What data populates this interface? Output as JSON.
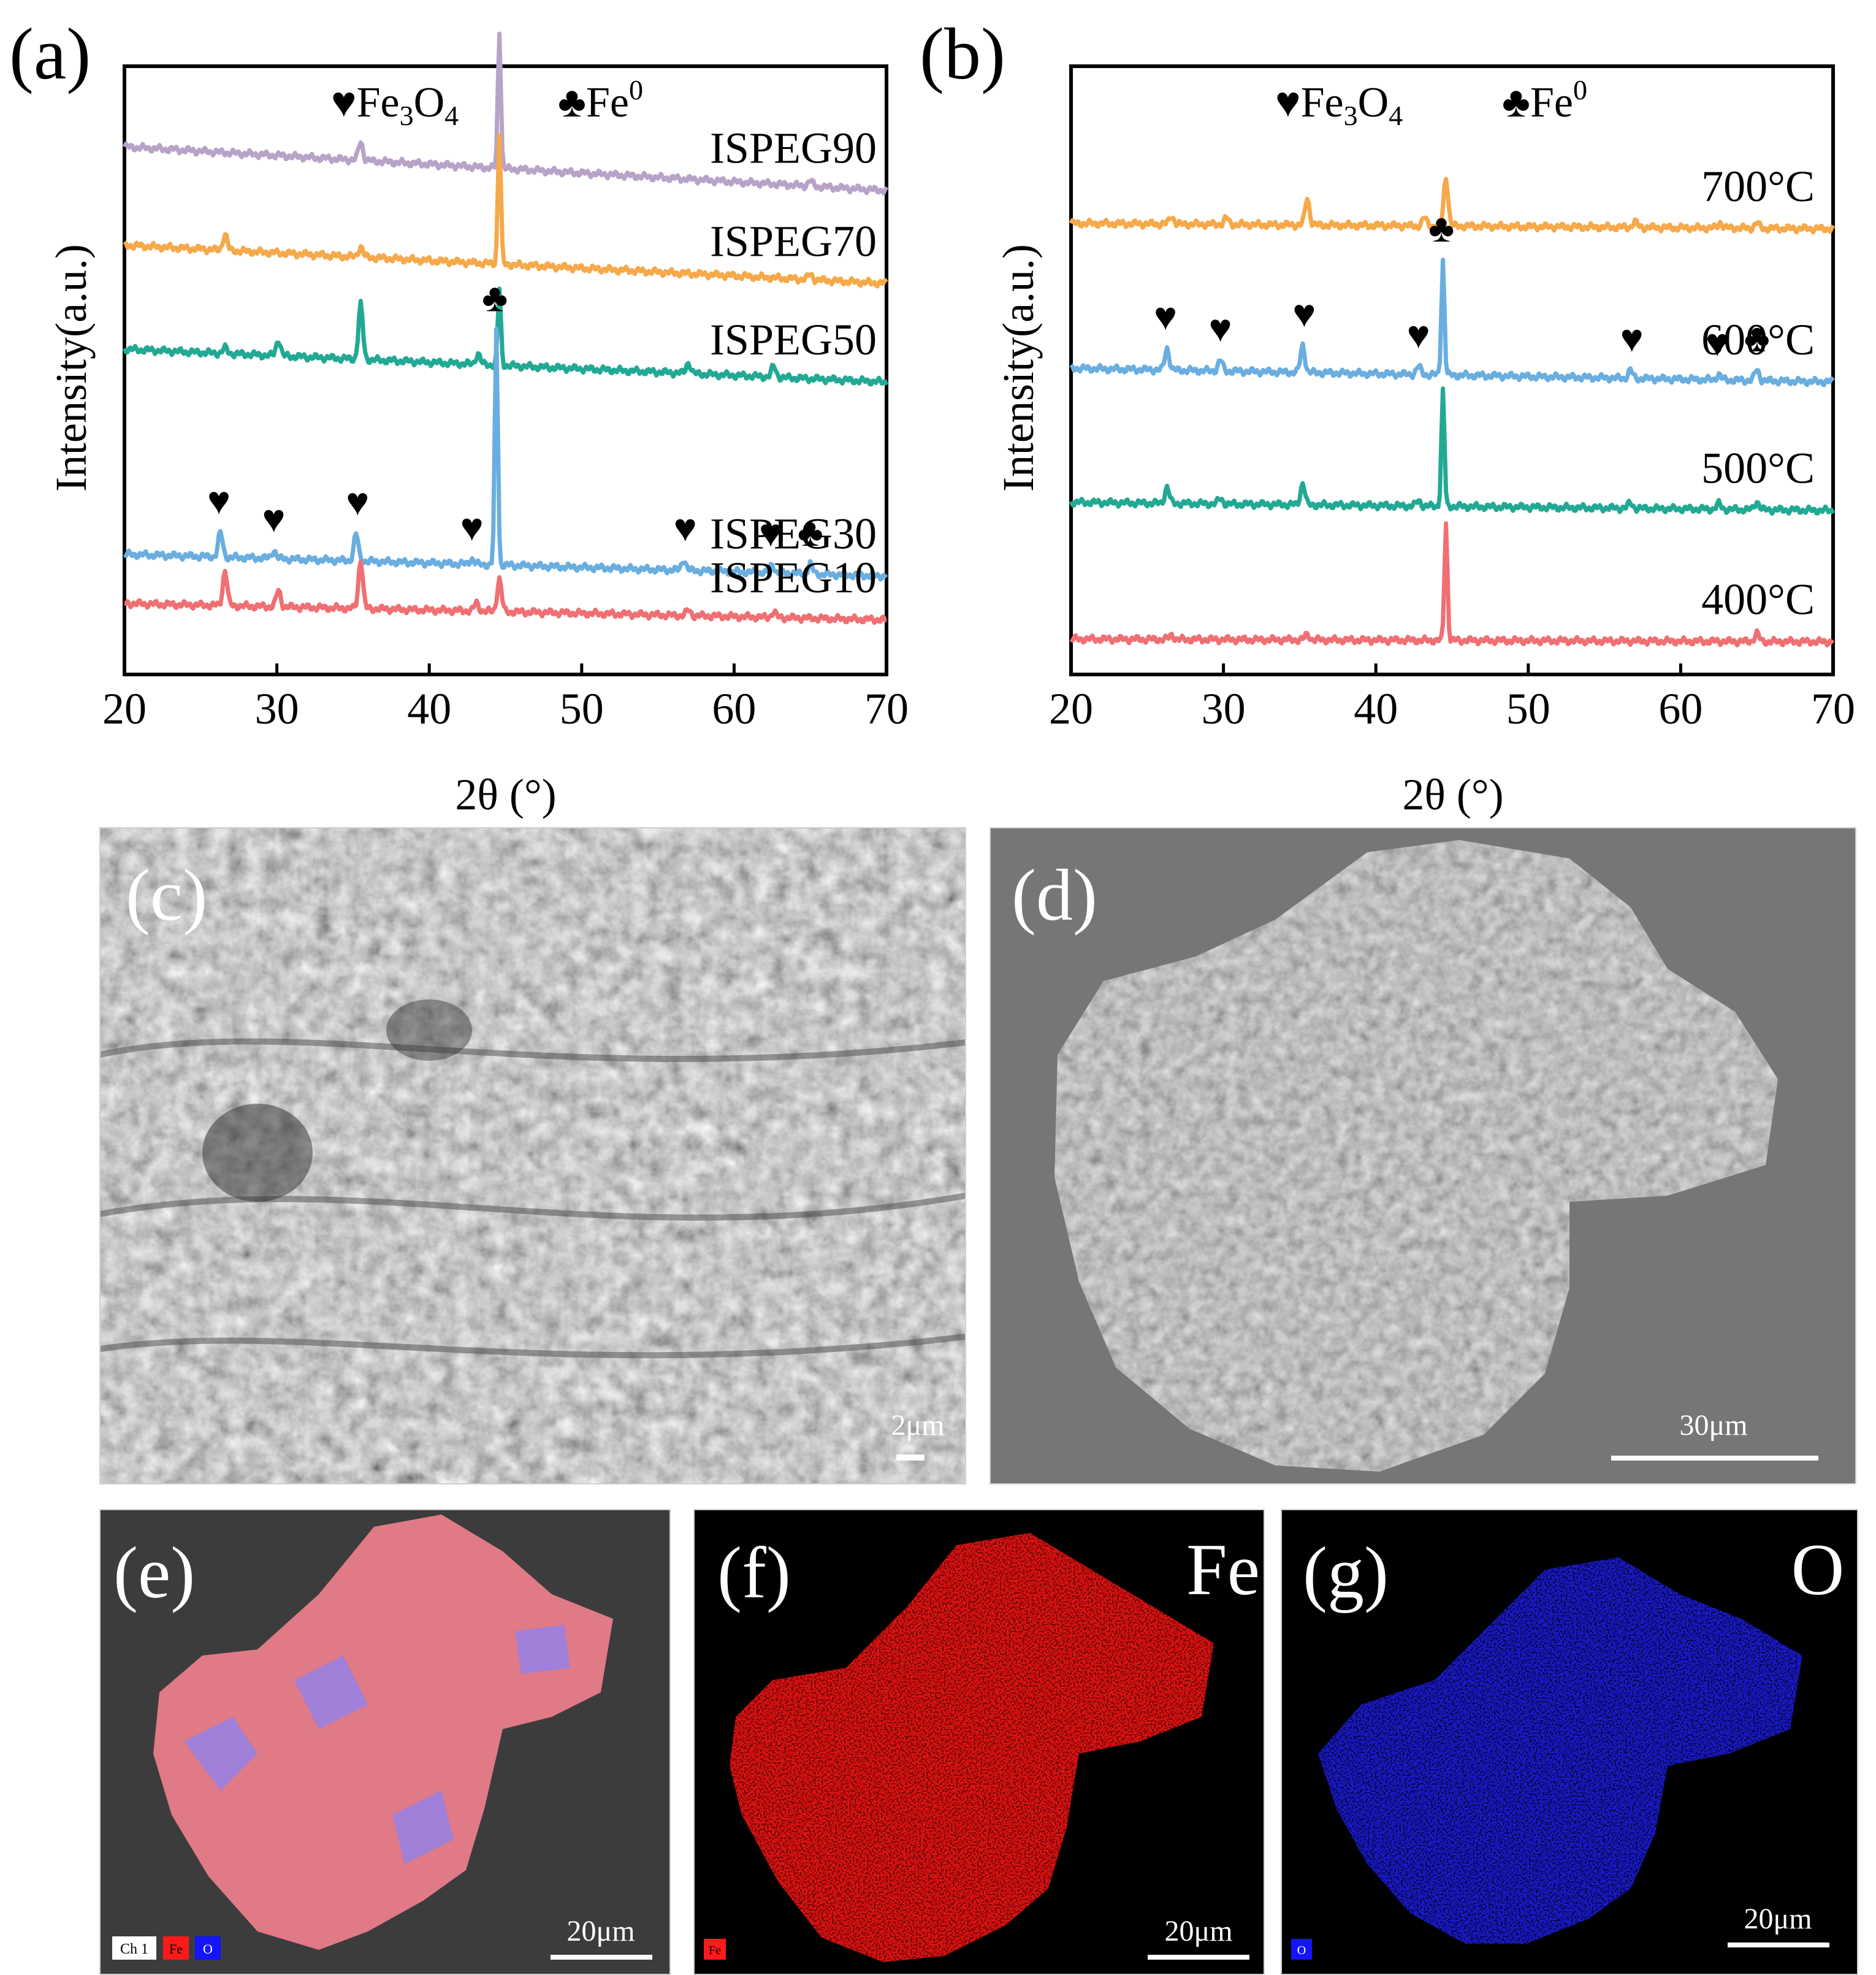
{
  "colors": {
    "ISPEG90": "#b8a3c8",
    "ISPEG70": "#f5a94a",
    "ISPEG50": "#22a994",
    "ISPEG30": "#6aaee0",
    "ISPEG10": "#ef6f73",
    "700C": "#f5a94a",
    "600C": "#6aaee0",
    "500C": "#22a994",
    "400C": "#ef6f73",
    "sem_bg": "#747474",
    "eds_fe": "#ff1a1a",
    "eds_o": "#1414ff"
  },
  "chart_data": [
    {
      "type": "line",
      "panel_label": "(a)",
      "xlabel": "2θ (°)",
      "ylabel": "Intensity(a.u.)",
      "xlim": [
        20,
        70
      ],
      "xticks": [
        "20",
        "30",
        "40",
        "50",
        "60",
        "70"
      ],
      "legend": {
        "fe3o4": "♥Fe",
        "fe3o4_sub3": "3",
        "fe3o4_O": "O",
        "fe3o4_sub4": "4",
        "fe0": "♣Fe",
        "fe0_sup": "0"
      },
      "series": [
        {
          "name": "ISPEG90",
          "baseline_start": 0.92,
          "baseline_end": 0.84,
          "peaks": [
            [
              35.5,
              0.035
            ],
            [
              44.6,
              0.25
            ],
            [
              65,
              0.01
            ]
          ]
        },
        {
          "name": "ISPEG70",
          "baseline_start": 0.74,
          "baseline_end": 0.67,
          "peaks": [
            [
              26.6,
              0.03
            ],
            [
              35.5,
              0.02
            ],
            [
              44.6,
              0.24
            ],
            [
              65,
              0.01
            ]
          ]
        },
        {
          "name": "ISPEG50",
          "baseline_start": 0.55,
          "baseline_end": 0.49,
          "peaks": [
            [
              26.6,
              0.01
            ],
            [
              30.1,
              0.03
            ],
            [
              35.5,
              0.1
            ],
            [
              43.2,
              0.02
            ],
            [
              44.6,
              0.14
            ],
            [
              57,
              0.02
            ],
            [
              62.6,
              0.02
            ]
          ]
        },
        {
          "name": "ISPEG30",
          "baseline_start": 0.175,
          "baseline_end": 0.135,
          "peaks": [
            [
              26.3,
              0.045
            ],
            [
              29.8,
              0.015
            ],
            [
              35.2,
              0.05
            ],
            [
              42.8,
              0.01
            ],
            [
              44.4,
              0.43
            ],
            [
              56.7,
              0.02
            ],
            [
              62.5,
              0.015
            ],
            [
              65,
              0.018
            ]
          ]
        },
        {
          "name": "ISPEG10",
          "baseline_start": 0.085,
          "baseline_end": 0.055,
          "peaks": [
            [
              26.6,
              0.065
            ],
            [
              30.1,
              0.03
            ],
            [
              35.5,
              0.09
            ],
            [
              43.1,
              0.015
            ],
            [
              44.6,
              0.06
            ],
            [
              57,
              0.01
            ],
            [
              62.6,
              0.01
            ]
          ]
        }
      ],
      "markers": [
        {
          "symbol": "♥",
          "x": 26.2
        },
        {
          "symbol": "♥",
          "x": 29.8
        },
        {
          "symbol": "♥",
          "x": 35.3
        },
        {
          "symbol": "♥",
          "x": 42.8
        },
        {
          "symbol": "♣",
          "x": 44.3
        },
        {
          "symbol": "♥",
          "x": 56.8
        },
        {
          "symbol": "♥",
          "x": 62.4
        },
        {
          "symbol": "♣",
          "x": 65.0
        }
      ]
    },
    {
      "type": "line",
      "panel_label": "(b)",
      "xlabel": "2θ (°)",
      "ylabel": "Intensity(a.u.)",
      "xlim": [
        20,
        70
      ],
      "xticks": [
        "20",
        "30",
        "40",
        "50",
        "60",
        "70"
      ],
      "legend": {
        "fe3o4": "♥Fe",
        "fe3o4_sub3": "3",
        "fe3o4_O": "O",
        "fe3o4_sub4": "4",
        "fe0": "♣Fe",
        "fe0_sup": "0"
      },
      "series": [
        {
          "name": "700°C",
          "baseline_start": 0.78,
          "baseline_end": 0.77,
          "peaks": [
            [
              26.6,
              0.015
            ],
            [
              30.2,
              0.012
            ],
            [
              35.5,
              0.05
            ],
            [
              43.2,
              0.015
            ],
            [
              44.6,
              0.09
            ],
            [
              57,
              0.01
            ],
            [
              62.6,
              0.01
            ],
            [
              65,
              0.01
            ]
          ]
        },
        {
          "name": "600°C",
          "baseline_start": 0.515,
          "baseline_end": 0.49,
          "peaks": [
            [
              26.3,
              0.04
            ],
            [
              29.8,
              0.02
            ],
            [
              35.2,
              0.05
            ],
            [
              42.8,
              0.015
            ],
            [
              44.4,
              0.21
            ],
            [
              56.7,
              0.015
            ],
            [
              62.5,
              0.01
            ],
            [
              65,
              0.02
            ]
          ]
        },
        {
          "name": "500°C",
          "baseline_start": 0.27,
          "baseline_end": 0.255,
          "peaks": [
            [
              26.3,
              0.03
            ],
            [
              29.8,
              0.01
            ],
            [
              35.2,
              0.04
            ],
            [
              42.8,
              0.01
            ],
            [
              44.4,
              0.21
            ],
            [
              56.7,
              0.01
            ],
            [
              62.5,
              0.01
            ],
            [
              65,
              0.015
            ]
          ]
        },
        {
          "name": "400°C",
          "baseline_start": 0.02,
          "baseline_end": 0.015,
          "peaks": [
            [
              26.6,
              0.008
            ],
            [
              35.5,
              0.01
            ],
            [
              44.6,
              0.215
            ],
            [
              65,
              0.015
            ]
          ]
        }
      ],
      "markers": [
        {
          "symbol": "♥",
          "x": 26.2
        },
        {
          "symbol": "♥",
          "x": 29.8
        },
        {
          "symbol": "♥",
          "x": 35.3
        },
        {
          "symbol": "♥",
          "x": 42.8
        },
        {
          "symbol": "♣",
          "x": 44.3
        },
        {
          "symbol": "♥",
          "x": 56.8
        },
        {
          "symbol": "♥",
          "x": 62.4
        },
        {
          "symbol": "♣",
          "x": 65.0
        }
      ]
    }
  ],
  "images": {
    "c": {
      "label": "(c)",
      "scale": "2μm"
    },
    "d": {
      "label": "(d)",
      "scale": "30μm"
    },
    "e": {
      "label": "(e)",
      "scale": "20μm",
      "legend": [
        "Ch 1",
        "Fe",
        "O"
      ]
    },
    "f": {
      "label": "(f)",
      "element": "Fe",
      "scale": "20μm",
      "legend": "Fe"
    },
    "g": {
      "label": "(g)",
      "element": "O",
      "scale": "20μm",
      "legend": "O"
    }
  }
}
